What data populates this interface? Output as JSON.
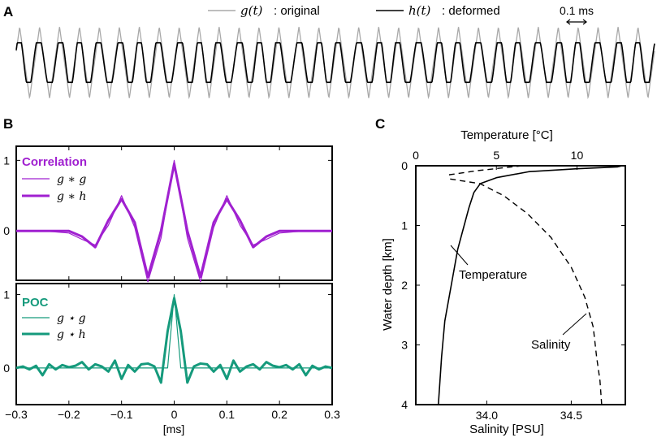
{
  "panel_labels": {
    "a": "A",
    "b": "B",
    "c": "C"
  },
  "chart_data": [
    {
      "type": "line",
      "panel": "A",
      "legend": [
        {
          "symbol": "g(t)",
          "text": ": original",
          "color": "#a9a9a9"
        },
        {
          "symbol": "h(t)",
          "text": ": deformed",
          "color": "#000000"
        }
      ],
      "scale_bar_label": "0.1 ms",
      "series": [
        {
          "name": "g(t)",
          "period_ms": 0.1,
          "amplitude": 1.0,
          "cycles": 32
        },
        {
          "name": "h(t)",
          "period_ms": 0.1,
          "amplitude": 0.55,
          "cycles": 32
        }
      ]
    },
    {
      "type": "line",
      "panel": "B-top",
      "title": "Correlation",
      "title_color": "#a020d0",
      "legend": [
        {
          "label": "g ∗ g",
          "weight": "thin"
        },
        {
          "label": "g ∗ h",
          "weight": "thick"
        }
      ],
      "xlim": [
        -0.3,
        0.3
      ],
      "ylim": [
        -0.7,
        1.2
      ],
      "yticks": [
        "1",
        "0"
      ],
      "series": [
        {
          "name": "g ∗ g",
          "x": [
            -0.3,
            -0.25,
            -0.2,
            -0.175,
            -0.15,
            -0.125,
            -0.1,
            -0.075,
            -0.05,
            -0.025,
            0,
            0.025,
            0.05,
            0.075,
            0.1,
            0.125,
            0.15,
            0.175,
            0.2,
            0.25,
            0.3
          ],
          "y": [
            0,
            0,
            -0.03,
            -0.12,
            -0.2,
            0.08,
            0.5,
            0.05,
            -0.72,
            -0.1,
            1.0,
            -0.1,
            -0.72,
            0.05,
            0.5,
            0.08,
            -0.2,
            -0.12,
            -0.03,
            0,
            0
          ]
        },
        {
          "name": "g ∗ h",
          "x": [
            -0.3,
            -0.25,
            -0.2,
            -0.175,
            -0.15,
            -0.125,
            -0.1,
            -0.075,
            -0.05,
            -0.025,
            0,
            0.025,
            0.05,
            0.075,
            0.1,
            0.125,
            0.15,
            0.175,
            0.2,
            0.25,
            0.3
          ],
          "y": [
            0,
            0,
            0,
            -0.08,
            -0.23,
            0.15,
            0.45,
            0.12,
            -0.65,
            0.0,
            0.95,
            0.0,
            -0.65,
            0.12,
            0.45,
            0.15,
            -0.23,
            -0.08,
            0,
            0,
            0
          ]
        }
      ]
    },
    {
      "type": "line",
      "panel": "B-bottom",
      "title": "POC",
      "title_color": "#159a7c",
      "legend": [
        {
          "label": "g ⋆ g",
          "weight": "thin"
        },
        {
          "label": "g ⋆ h",
          "weight": "thick"
        }
      ],
      "xlabel": "[ms]",
      "xlim": [
        -0.3,
        0.3
      ],
      "ylim": [
        -0.5,
        1.15
      ],
      "xticks": [
        "−0.3",
        "−0.2",
        "−0.1",
        "0",
        "0.1",
        "0.2",
        "0.3"
      ],
      "yticks": [
        "1",
        "0"
      ],
      "series": [
        {
          "name": "g ⋆ g",
          "x": [
            -0.3,
            -0.0125,
            -0.0125,
            0,
            0.0125,
            0.0125,
            0.3
          ],
          "y": [
            0,
            0,
            0,
            1.0,
            0,
            0,
            0
          ]
        },
        {
          "name": "g ⋆ h",
          "x": [
            -0.3,
            -0.2875,
            -0.275,
            -0.2625,
            -0.25,
            -0.2375,
            -0.225,
            -0.2125,
            -0.2,
            -0.1875,
            -0.175,
            -0.1625,
            -0.15,
            -0.1375,
            -0.125,
            -0.1125,
            -0.1,
            -0.0875,
            -0.075,
            -0.0625,
            -0.05,
            -0.0375,
            -0.025,
            -0.0125,
            0,
            0.0125,
            0.025,
            0.0375,
            0.05,
            0.0625,
            0.075,
            0.0875,
            0.1,
            0.1125,
            0.125,
            0.1375,
            0.15,
            0.1625,
            0.175,
            0.1875,
            0.2,
            0.2125,
            0.225,
            0.2375,
            0.25,
            0.2625,
            0.275,
            0.2875,
            0.3
          ],
          "y": [
            0,
            0.02,
            -0.02,
            0.03,
            -0.1,
            0.05,
            -0.02,
            0.04,
            0.01,
            0.03,
            0.08,
            -0.02,
            0.05,
            0.02,
            -0.05,
            0.1,
            -0.15,
            0.04,
            -0.05,
            0.05,
            0.06,
            0.02,
            -0.2,
            0.5,
            0.95,
            0.5,
            -0.2,
            0.02,
            0.06,
            0.05,
            -0.05,
            0.04,
            -0.15,
            0.1,
            -0.05,
            0.02,
            0.05,
            -0.02,
            0.08,
            0.03,
            0.01,
            0.04,
            -0.02,
            0.05,
            -0.1,
            0.03,
            -0.02,
            0.02,
            0
          ]
        }
      ]
    },
    {
      "type": "line",
      "panel": "C",
      "top_axis_label": "Temperature [°C]",
      "top_xlim": [
        0,
        13
      ],
      "top_xticks": [
        "0",
        "5",
        "10"
      ],
      "bottom_axis_label": "Salinity [PSU]",
      "bottom_xlim": [
        33.58,
        34.82
      ],
      "bottom_xticks": [
        "34.0",
        "34.5"
      ],
      "ylabel": "Water depth [km]",
      "ylim": [
        0,
        4
      ],
      "yticks": [
        "0",
        "1",
        "2",
        "3",
        "4"
      ],
      "annotations": [
        "Temperature",
        "Salinity"
      ],
      "series": [
        {
          "name": "Temperature",
          "axis": "top",
          "x": [
            12.8,
            12.5,
            10,
            7,
            5,
            4,
            3.6,
            3.3,
            3.0,
            2.6,
            2.2,
            1.8,
            1.6,
            1.5,
            1.4
          ],
          "y": [
            0,
            0.02,
            0.05,
            0.1,
            0.2,
            0.3,
            0.45,
            0.7,
            1.0,
            1.4,
            2.0,
            2.6,
            3.2,
            3.6,
            4.0
          ]
        },
        {
          "name": "Salinity",
          "axis": "bottom",
          "x": [
            34.21,
            33.95,
            33.78,
            33.78,
            33.96,
            34.1,
            34.24,
            34.38,
            34.5,
            34.58,
            34.63,
            34.65,
            34.67,
            34.68
          ],
          "y": [
            0,
            0.08,
            0.15,
            0.22,
            0.3,
            0.5,
            0.8,
            1.2,
            1.7,
            2.2,
            2.7,
            3.2,
            3.6,
            4.0
          ]
        }
      ]
    }
  ]
}
